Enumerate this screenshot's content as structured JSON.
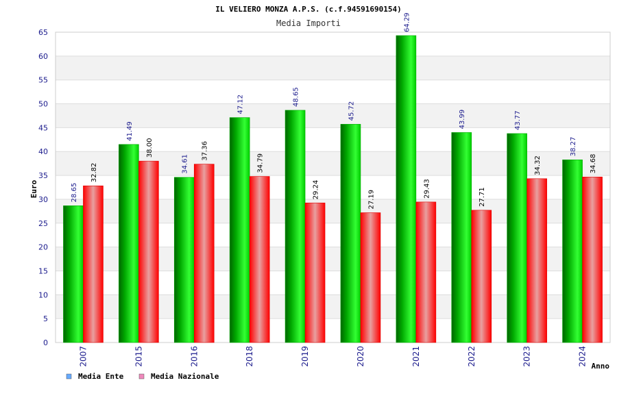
{
  "chart_data": {
    "type": "bar",
    "title": "IL VELIERO MONZA A.P.S. (c.f.94591690154)",
    "subtitle": "Media Importi",
    "xlabel": "Anno",
    "ylabel": "Euro",
    "ylim": [
      0,
      65
    ],
    "yticks": [
      0,
      5,
      10,
      15,
      20,
      25,
      30,
      35,
      40,
      45,
      50,
      55,
      60,
      65
    ],
    "categories": [
      "2007",
      "2015",
      "2016",
      "2018",
      "2019",
      "2020",
      "2021",
      "2022",
      "2023",
      "2024"
    ],
    "series": [
      {
        "name": "Media Ente",
        "color": "#00c000",
        "legend_color": "#66aaff",
        "values": [
          28.65,
          41.49,
          34.61,
          47.12,
          48.65,
          45.72,
          64.29,
          43.99,
          43.77,
          38.27
        ],
        "labels": [
          "28.65",
          "41.49",
          "34.61",
          "47.12",
          "48.65",
          "45.72",
          "64.29",
          "43.99",
          "43.77",
          "38.27"
        ]
      },
      {
        "name": "Media Nazionale",
        "color": "#ff0000",
        "legend_color": "#ee88bb",
        "values": [
          32.82,
          38.0,
          37.36,
          34.79,
          29.24,
          27.19,
          29.43,
          27.71,
          34.32,
          34.68
        ],
        "labels": [
          "32.82",
          "38.00",
          "37.36",
          "34.79",
          "29.24",
          "27.19",
          "29.43",
          "27.71",
          "34.32",
          "34.68"
        ]
      }
    ],
    "legend_position": "bottom-left"
  }
}
